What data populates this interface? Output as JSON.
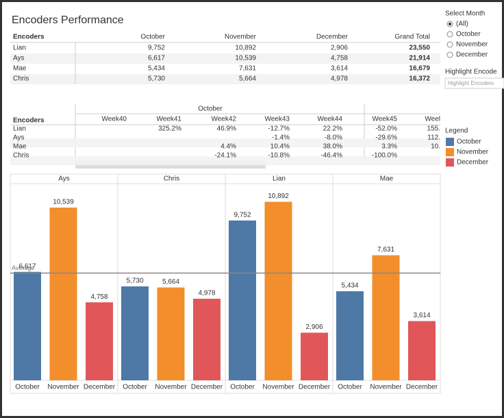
{
  "title": "Encoders Performance",
  "summary_table": {
    "columns": [
      "Encoders",
      "October",
      "November",
      "December",
      "Grand Total"
    ],
    "rows": [
      [
        "Lian",
        "9,752",
        "10,892",
        "2,906",
        "23,550"
      ],
      [
        "Ays",
        "6,617",
        "10,539",
        "4,758",
        "21,914"
      ],
      [
        "Mae",
        "5,434",
        "7,631",
        "3,614",
        "16,679"
      ],
      [
        "Chris",
        "5,730",
        "5,664",
        "4,978",
        "16,372"
      ]
    ]
  },
  "weekly_table": {
    "group": "October",
    "columns": [
      "Encoders",
      "Week40",
      "Week41",
      "Week42",
      "Week43",
      "Week44",
      "Week45",
      "Weel"
    ],
    "rows": [
      [
        "Lian",
        null,
        "325.2%",
        "46.9%",
        "-12.7%",
        "22.2%",
        "-52.0%",
        "155."
      ],
      [
        "Ays",
        null,
        null,
        null,
        "-1.4%",
        "-8.0%",
        "-29.6%",
        "112."
      ],
      [
        "Mae",
        null,
        null,
        "4.4%",
        "10.4%",
        "38.0%",
        "3.3%",
        "10."
      ],
      [
        "Chris",
        null,
        null,
        "-24.1%",
        "-10.8%",
        "-46.4%",
        "-100.0%",
        null
      ]
    ]
  },
  "filter": {
    "title": "Select Month",
    "options": [
      "(All)",
      "October",
      "November",
      "December"
    ]
  },
  "highlight": {
    "title": "Highlight Encode",
    "placeholder": "Highlight Encoders"
  },
  "chart_data": {
    "type": "bar",
    "categories": [
      "Ays",
      "Chris",
      "Lian",
      "Mae"
    ],
    "ylim": [
      0,
      12000
    ],
    "series": [
      {
        "name": "October",
        "color": "#4e79a7",
        "values": [
          6617,
          5730,
          9752,
          5434
        ],
        "value_labels": [
          "6,617",
          "5,730",
          "9,752",
          "5,434"
        ]
      },
      {
        "name": "November",
        "color": "#f28e2b",
        "values": [
          10539,
          5664,
          10892,
          7631
        ],
        "value_labels": [
          "10,539",
          "5,664",
          "10,892",
          "7,631"
        ]
      },
      {
        "name": "December",
        "color": "#e15759",
        "values": [
          4758,
          4978,
          2906,
          3614
        ],
        "value_labels": [
          "4,758",
          "4,978",
          "2,906",
          "3,614"
        ]
      }
    ],
    "reference_line": {
      "label": "Average",
      "value": 6543
    },
    "legend": {
      "title": "Legend",
      "position": "right"
    }
  }
}
